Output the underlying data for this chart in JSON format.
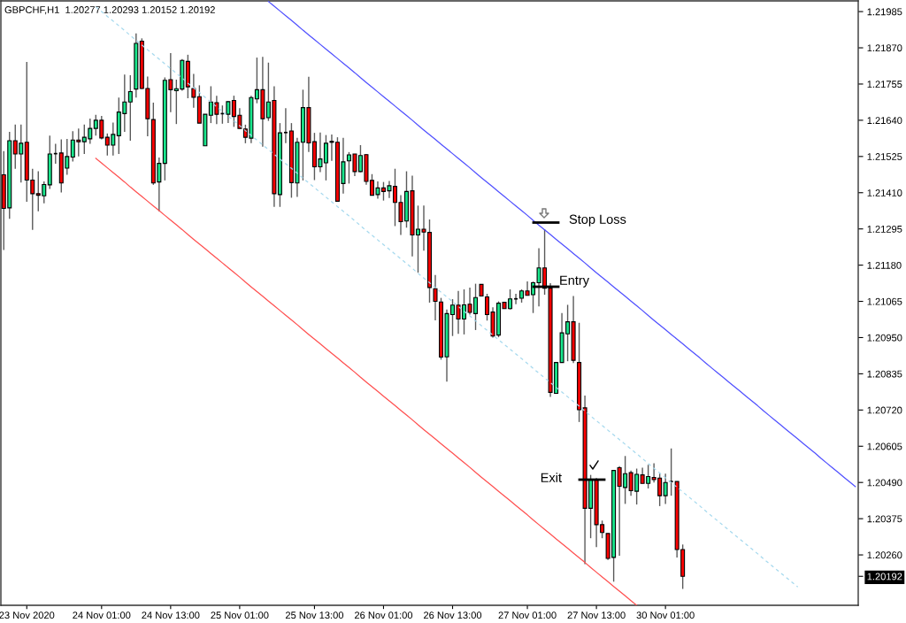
{
  "chart_data": {
    "type": "candlestick",
    "title": "GBPCHF,H1  1.20277 1.20293 1.20152 1.20192",
    "categories": [
      null,
      null,
      null,
      null,
      "23 Nov 2020",
      null,
      null,
      null,
      null,
      null,
      null,
      null,
      null,
      null,
      null,
      null,
      null,
      "24 Nov 01:00",
      null,
      null,
      null,
      null,
      null,
      null,
      null,
      null,
      null,
      null,
      null,
      "24 Nov 13:00",
      null,
      null,
      null,
      null,
      null,
      null,
      null,
      null,
      null,
      null,
      null,
      "25 Nov 01:00",
      null,
      null,
      null,
      null,
      null,
      null,
      null,
      null,
      null,
      null,
      null,
      null,
      "25 Nov 13:00",
      null,
      null,
      null,
      null,
      null,
      null,
      null,
      null,
      null,
      null,
      null,
      "26 Nov 01:00",
      null,
      null,
      null,
      null,
      null,
      null,
      null,
      null,
      null,
      null,
      null,
      "26 Nov 13:00",
      null,
      null,
      null,
      null,
      null,
      null,
      null,
      null,
      null,
      null,
      null,
      null,
      "27 Nov 01:00",
      null,
      null,
      null,
      null,
      null,
      null,
      null,
      null,
      null,
      null,
      null,
      "27 Nov 13:00",
      null,
      null,
      null,
      null,
      null,
      null,
      null,
      null,
      null,
      null,
      null,
      "30 Nov 01:00",
      null,
      null,
      null,
      null,
      null,
      null,
      null,
      null,
      null,
      null,
      null,
      null,
      null,
      null,
      null,
      null,
      null,
      null,
      null,
      null,
      null,
      null,
      null,
      null,
      null,
      null,
      null,
      null,
      null,
      null,
      null,
      null,
      null
    ],
    "ohlc": [
      [
        1.21467,
        1.21542,
        1.21228,
        1.2136
      ],
      [
        1.21362,
        1.21603,
        1.21327,
        1.21575
      ],
      [
        1.21575,
        1.21626,
        1.21486,
        1.21533
      ],
      [
        1.21533,
        1.21626,
        1.21442,
        1.21567
      ],
      [
        1.2157,
        1.21825,
        1.21381,
        1.2145
      ],
      [
        1.2145,
        1.21486,
        1.21292,
        1.21407
      ],
      [
        1.21407,
        1.21478,
        1.21351,
        1.21402
      ],
      [
        1.214,
        1.21446,
        1.21376,
        1.21436
      ],
      [
        1.21435,
        1.21591,
        1.21422,
        1.21533
      ],
      [
        1.21534,
        1.21565,
        1.21502,
        1.21534
      ],
      [
        1.21536,
        1.21579,
        1.21411,
        1.21441
      ],
      [
        1.21488,
        1.21581,
        1.21467,
        1.21525
      ],
      [
        1.21523,
        1.21605,
        1.21509,
        1.21577
      ],
      [
        1.21577,
        1.21614,
        1.21525,
        1.21572
      ],
      [
        1.21572,
        1.21626,
        1.21533,
        1.21586
      ],
      [
        1.21581,
        1.21645,
        1.21565,
        1.21614
      ],
      [
        1.21614,
        1.21657,
        1.21591,
        1.2164
      ],
      [
        1.2164,
        1.21654,
        1.21579,
        1.21584
      ],
      [
        1.21586,
        1.21598,
        1.21528,
        1.21561
      ],
      [
        1.21561,
        1.21633,
        1.21528,
        1.21595
      ],
      [
        1.21591,
        1.21712,
        1.21533,
        1.21666
      ],
      [
        1.21661,
        1.21785,
        1.21603,
        1.21698
      ],
      [
        1.21698,
        1.21783,
        1.21575,
        1.21731
      ],
      [
        1.21739,
        1.21916,
        1.21712,
        1.21884
      ],
      [
        1.21891,
        1.219,
        1.21739,
        1.21741
      ],
      [
        1.21741,
        1.21779,
        1.21589,
        1.21645
      ],
      [
        1.21642,
        1.21696,
        1.21435,
        1.21441
      ],
      [
        1.21444,
        1.21522,
        1.21351,
        1.21503
      ],
      [
        1.21503,
        1.21776,
        1.21449,
        1.21767
      ],
      [
        1.21769,
        1.21853,
        1.21666,
        1.21737
      ],
      [
        1.21734,
        1.21769,
        1.21628,
        1.2174
      ],
      [
        1.21739,
        1.21834,
        1.21734,
        1.2183
      ],
      [
        1.21827,
        1.21848,
        1.2171,
        1.21746
      ],
      [
        1.21741,
        1.21787,
        1.2168,
        1.21713
      ],
      [
        1.21715,
        1.21751,
        1.21631,
        1.21631
      ],
      [
        1.21559,
        1.21659,
        1.21559,
        1.21659
      ],
      [
        1.21656,
        1.21748,
        1.21631,
        1.21698
      ],
      [
        1.21696,
        1.21718,
        1.21628,
        1.21659
      ],
      [
        1.21661,
        1.21687,
        1.21629,
        1.21661
      ],
      [
        1.21659,
        1.21701,
        1.21631,
        1.21699
      ],
      [
        1.21703,
        1.21718,
        1.21619,
        1.21652
      ],
      [
        1.21656,
        1.21678,
        1.21614,
        1.21614
      ],
      [
        1.21612,
        1.21626,
        1.21567,
        1.21586
      ],
      [
        1.21583,
        1.21718,
        1.21567,
        1.21712
      ],
      [
        1.21708,
        1.21839,
        1.21694,
        1.21737
      ],
      [
        1.21737,
        1.21841,
        1.21556,
        1.21645
      ],
      [
        1.21648,
        1.21823,
        1.21638,
        1.21698
      ],
      [
        1.21703,
        1.21748,
        1.21365,
        1.21407
      ],
      [
        1.21404,
        1.21631,
        1.21365,
        1.216
      ],
      [
        1.21601,
        1.21678,
        1.21567,
        1.21601
      ],
      [
        1.21606,
        1.21631,
        1.21394,
        1.21442
      ],
      [
        1.21441,
        1.21584,
        1.21397,
        1.2157
      ],
      [
        1.2157,
        1.21737,
        1.21449,
        1.2168
      ],
      [
        1.2168,
        1.21778,
        1.21539,
        1.21568
      ],
      [
        1.21572,
        1.216,
        1.2145,
        1.21492
      ],
      [
        1.21492,
        1.21601,
        1.21475,
        1.21517
      ],
      [
        1.21505,
        1.21593,
        1.21449,
        1.21567
      ],
      [
        1.2157,
        1.21595,
        1.21511,
        1.21573
      ],
      [
        1.2157,
        1.21586,
        1.21383,
        1.21383
      ],
      [
        1.21439,
        1.21584,
        1.21407,
        1.21508
      ],
      [
        1.21511,
        1.21539,
        1.21439,
        1.2153
      ],
      [
        1.21533,
        1.21533,
        1.21463,
        1.21477
      ],
      [
        1.21477,
        1.21561,
        1.21475,
        1.21528
      ],
      [
        1.21531,
        1.21533,
        1.21435,
        1.21446
      ],
      [
        1.21449,
        1.21469,
        1.21402,
        1.21402
      ],
      [
        1.21404,
        1.21446,
        1.21391,
        1.21425
      ],
      [
        1.21425,
        1.21444,
        1.21385,
        1.21414
      ],
      [
        1.21416,
        1.21447,
        1.21393,
        1.21432
      ],
      [
        1.2143,
        1.21486,
        1.21304,
        1.21379
      ],
      [
        1.21379,
        1.21402,
        1.21276,
        1.21318
      ],
      [
        1.2132,
        1.21478,
        1.21299,
        1.21414
      ],
      [
        1.21416,
        1.21464,
        1.21208,
        1.21276
      ],
      [
        1.21276,
        1.21369,
        1.21156,
        1.21294
      ],
      [
        1.21294,
        1.21369,
        1.21226,
        1.21285
      ],
      [
        1.21284,
        1.21325,
        1.21061,
        1.21109
      ],
      [
        1.21105,
        1.21149,
        1.21005,
        1.21065
      ],
      [
        1.21063,
        1.21076,
        1.2088,
        1.20888
      ],
      [
        1.20889,
        1.21039,
        1.2081,
        1.21026
      ],
      [
        1.21023,
        1.21072,
        1.20955,
        1.21053
      ],
      [
        1.21053,
        1.21098,
        1.20962,
        1.21009
      ],
      [
        1.21009,
        1.21103,
        1.2096,
        1.21054
      ],
      [
        1.21056,
        1.21109,
        1.21023,
        1.2103
      ],
      [
        1.21026,
        1.21121,
        1.20974,
        1.21077
      ],
      [
        1.21119,
        1.21119,
        1.21082,
        1.21082
      ],
      [
        1.21079,
        1.21089,
        1.21004,
        1.21023
      ],
      [
        1.21031,
        1.21046,
        1.2095,
        1.20955
      ],
      [
        1.20958,
        1.21065,
        1.20951,
        1.21059
      ],
      [
        1.21062,
        1.21062,
        1.21042,
        1.21042
      ],
      [
        1.21042,
        1.21103,
        1.21039,
        1.21073
      ],
      [
        1.21073,
        1.21089,
        1.21056,
        1.21073
      ],
      [
        1.21075,
        1.21103,
        1.21061,
        1.21098
      ],
      [
        1.21098,
        1.21128,
        1.21084,
        1.21084
      ],
      [
        1.21086,
        1.21128,
        1.21028,
        1.21124
      ],
      [
        1.21124,
        1.21234,
        1.21049,
        1.21171
      ],
      [
        1.21171,
        1.21294,
        1.21086,
        1.21107
      ],
      [
        1.21107,
        1.21123,
        1.20762,
        1.20776
      ],
      [
        1.20773,
        1.20871,
        1.20773,
        1.20871
      ],
      [
        1.20871,
        1.21028,
        1.20871,
        1.20965
      ],
      [
        1.20962,
        1.21054,
        1.20875,
        1.21
      ],
      [
        1.21,
        1.21082,
        1.20869,
        1.20878
      ],
      [
        1.20871,
        1.20997,
        1.20682,
        1.20721
      ],
      [
        1.20727,
        1.20766,
        1.20231,
        1.20408
      ],
      [
        1.20408,
        1.20514,
        1.20313,
        1.20499
      ],
      [
        1.20499,
        1.20504,
        1.20285,
        1.20356
      ],
      [
        1.20356,
        1.20369,
        1.20313,
        1.20331
      ],
      [
        1.20328,
        1.20328,
        1.20244,
        1.20249
      ],
      [
        1.20252,
        1.20528,
        1.20175,
        1.20528
      ],
      [
        1.20537,
        1.20542,
        1.20257,
        1.20478
      ],
      [
        1.20474,
        1.20574,
        1.20422,
        1.20518
      ],
      [
        1.20521,
        1.20528,
        1.20448,
        1.20464
      ],
      [
        1.20462,
        1.20534,
        1.2042,
        1.20516
      ],
      [
        1.20514,
        1.20537,
        1.20487,
        1.20487
      ],
      [
        1.20487,
        1.20546,
        1.20471,
        1.20509
      ],
      [
        1.20506,
        1.20551,
        1.2049,
        1.20499
      ],
      [
        1.20504,
        1.20518,
        1.20415,
        1.20448
      ],
      [
        1.20448,
        1.20518,
        1.20422,
        1.2049
      ],
      [
        1.20493,
        1.20598,
        1.20448,
        1.20493
      ],
      [
        1.20493,
        1.20493,
        1.20252,
        1.20277
      ],
      [
        1.20277,
        1.20293,
        1.20152,
        1.20192
      ],
      null,
      null,
      null,
      null,
      null,
      null,
      null,
      null,
      null,
      null,
      null,
      null,
      null,
      null,
      null,
      null,
      null,
      null,
      null,
      null,
      null,
      null,
      null,
      null,
      null,
      null,
      null,
      null,
      null,
      null
    ],
    "colors": [
      "#ff0000",
      "#19e68c",
      "#ff0000",
      "#19e68c",
      "#ff0000",
      "#ff0000",
      "#ff0000",
      "#19e68c",
      "#19e68c",
      "#000000",
      "#ff0000",
      "#19e68c",
      "#19e68c",
      "#ff0000",
      "#19e68c",
      "#19e68c",
      "#19e68c",
      "#ff0000",
      "#ff0000",
      "#19e68c",
      "#19e68c",
      "#19e68c",
      "#19e68c",
      "#19e68c",
      "#ff0000",
      "#ff0000",
      "#ff0000",
      "#19e68c",
      "#19e68c",
      "#ff0000",
      "#19e68c",
      "#19e68c",
      "#ff0000",
      "#ff0000",
      "#ff0000",
      "#19e68c",
      "#19e68c",
      "#ff0000",
      "#000000",
      "#19e68c",
      "#ff0000",
      "#ff0000",
      "#ff0000",
      "#19e68c",
      "#19e68c",
      "#ff0000",
      "#19e68c",
      "#ff0000",
      "#19e68c",
      "#000000",
      "#ff0000",
      "#19e68c",
      "#19e68c",
      "#ff0000",
      "#ff0000",
      "#19e68c",
      "#19e68c",
      "#19e68c",
      "#ff0000",
      "#19e68c",
      "#19e68c",
      "#ff0000",
      "#19e68c",
      "#ff0000",
      "#ff0000",
      "#19e68c",
      "#ff0000",
      "#19e68c",
      "#ff0000",
      "#ff0000",
      "#19e68c",
      "#ff0000",
      "#19e68c",
      "#ff0000",
      "#ff0000",
      "#ff0000",
      "#ff0000",
      "#19e68c",
      "#19e68c",
      "#ff0000",
      "#19e68c",
      "#ff0000",
      "#19e68c",
      "#ff0000",
      "#ff0000",
      "#ff0000",
      "#19e68c",
      "#ff0000",
      "#19e68c",
      "#000000",
      "#19e68c",
      "#ff0000",
      "#19e68c",
      "#19e68c",
      "#ff0000",
      "#ff0000",
      "#19e68c",
      "#19e68c",
      "#19e68c",
      "#ff0000",
      "#ff0000",
      "#ff0000",
      "#19e68c",
      "#ff0000",
      "#ff0000",
      "#ff0000",
      "#19e68c",
      "#ff0000",
      "#19e68c",
      "#ff0000",
      "#19e68c",
      "#ff0000",
      "#19e68c",
      "#ff0000",
      "#ff0000",
      "#19e68c",
      "#000000",
      "#ff0000",
      "#ff0000",
      null,
      null,
      null,
      null,
      null,
      null,
      null,
      null,
      null,
      null,
      null,
      null,
      null,
      null,
      null,
      null,
      null,
      null,
      null,
      null,
      null,
      null,
      null,
      null,
      null,
      null,
      null,
      null,
      null,
      null
    ],
    "series": [
      {
        "type": "line",
        "color": "#5050ff",
        "values": [
          null,
          null,
          null,
          null,
          null,
          null,
          null,
          null,
          null,
          null,
          null,
          null,
          null,
          null,
          null,
          null,
          null,
          null,
          null,
          null,
          null,
          null,
          null,
          null,
          null,
          null,
          null,
          null,
          null,
          null,
          null,
          null,
          null,
          null,
          null,
          null,
          null,
          null,
          null,
          null,
          null,
          null,
          null,
          null,
          null,
          null,
          1.22017,
          1.22002,
          1.21987,
          1.21972,
          1.21957,
          1.21942,
          1.21926,
          1.21911,
          1.21896,
          1.21881,
          1.21866,
          1.21851,
          1.21836,
          1.21821,
          1.21806,
          1.21791,
          1.21775,
          1.2176,
          1.21745,
          1.2173,
          1.21715,
          1.217,
          1.21685,
          1.2167,
          1.21655,
          1.2164,
          1.21624,
          1.21609,
          1.21594,
          1.21579,
          1.21564,
          1.21549,
          1.21534,
          1.21519,
          1.21504,
          1.21489,
          1.21473,
          1.21458,
          1.21443,
          1.21428,
          1.21413,
          1.21398,
          1.21383,
          1.21368,
          1.21353,
          1.21338,
          1.21322,
          1.21307,
          1.21292,
          1.21277,
          1.21262,
          1.21247,
          1.21232,
          1.21217,
          1.21202,
          1.21187,
          1.21171,
          1.21156,
          1.21141,
          1.21126,
          1.21111,
          1.21096,
          1.21081,
          1.21066,
          1.21051,
          1.21036,
          1.2102,
          1.21005,
          1.2099,
          1.20975,
          1.2096,
          1.20945,
          1.2093,
          1.20915,
          1.209,
          1.20885,
          1.20869,
          1.20854,
          1.20839,
          1.20824,
          1.20809,
          1.20794,
          1.20779,
          1.20764,
          1.20749,
          1.20734,
          1.20718,
          1.20703,
          1.20688,
          1.20673,
          1.20658,
          1.20643,
          1.20628,
          1.20613,
          1.20598,
          1.20583,
          1.20567,
          1.20552,
          1.20537,
          1.20522,
          1.20507,
          1.20492,
          1.20477
        ]
      },
      {
        "type": "line",
        "color": "#ff5050",
        "values": [
          null,
          null,
          null,
          null,
          null,
          null,
          null,
          null,
          null,
          null,
          null,
          null,
          null,
          null,
          null,
          null,
          1.21519,
          1.21504,
          1.21489,
          1.21474,
          1.21459,
          1.21444,
          1.21428,
          1.21413,
          1.21398,
          1.21383,
          1.21368,
          1.21353,
          1.21338,
          1.21323,
          1.21308,
          1.21293,
          1.21277,
          1.21262,
          1.21247,
          1.21232,
          1.21217,
          1.21202,
          1.21187,
          1.21172,
          1.21157,
          1.21142,
          1.21126,
          1.21111,
          1.21096,
          1.21081,
          1.21066,
          1.21051,
          1.21036,
          1.21021,
          1.21006,
          1.20991,
          1.20975,
          1.2096,
          1.20945,
          1.2093,
          1.20915,
          1.209,
          1.20885,
          1.2087,
          1.20855,
          1.2084,
          1.20824,
          1.20809,
          1.20794,
          1.20779,
          1.20764,
          1.20749,
          1.20734,
          1.20719,
          1.20704,
          1.20689,
          1.20673,
          1.20658,
          1.20643,
          1.20628,
          1.20613,
          1.20598,
          1.20583,
          1.20568,
          1.20553,
          1.20538,
          1.20522,
          1.20507,
          1.20492,
          1.20477,
          1.20462,
          1.20447,
          1.20432,
          1.20417,
          1.20402,
          1.20387,
          1.20371,
          1.20356,
          1.20341,
          1.20326,
          1.20311,
          1.20296,
          1.20281,
          1.20266,
          1.20251,
          1.20236,
          1.2022,
          1.20205,
          1.2019,
          1.20175,
          1.2016,
          1.20145,
          1.2013,
          1.20115,
          1.201,
          null,
          null,
          null,
          null,
          null,
          null,
          null,
          null,
          null,
          null,
          null,
          null,
          null,
          null,
          null,
          null,
          null,
          null,
          null,
          null,
          null,
          null,
          null,
          null,
          null,
          null,
          null,
          null,
          null,
          null,
          null,
          null,
          null,
          null,
          null,
          null,
          null,
          null
        ]
      },
      {
        "type": "line",
        "color": "#a6d9ee",
        "line_style": "dashed",
        "values": [
          null,
          null,
          null,
          null,
          null,
          null,
          null,
          null,
          null,
          null,
          null,
          null,
          null,
          null,
          null,
          null,
          1.22,
          1.21985,
          1.2197,
          1.21955,
          1.2194,
          1.21925,
          1.21909,
          1.21894,
          1.21879,
          1.21864,
          1.21849,
          1.21834,
          1.21819,
          1.21804,
          1.21789,
          1.21774,
          1.21758,
          1.21743,
          1.21728,
          1.21713,
          1.21698,
          1.21683,
          1.21668,
          1.21653,
          1.21638,
          1.21623,
          1.21607,
          1.21592,
          1.21577,
          1.21562,
          1.21547,
          1.21532,
          1.21517,
          1.21502,
          1.21487,
          1.21472,
          1.21456,
          1.21441,
          1.21426,
          1.21411,
          1.21396,
          1.21381,
          1.21366,
          1.21351,
          1.21336,
          1.21321,
          1.21305,
          1.2129,
          1.21275,
          1.2126,
          1.21245,
          1.2123,
          1.21215,
          1.212,
          1.21185,
          1.2117,
          1.21154,
          1.21139,
          1.21124,
          1.21109,
          1.21094,
          1.21079,
          1.21064,
          1.21049,
          1.21034,
          1.21019,
          1.21003,
          1.20988,
          1.20973,
          1.20958,
          1.20943,
          1.20928,
          1.20913,
          1.20898,
          1.20883,
          1.20868,
          1.20852,
          1.20837,
          1.20822,
          1.20807,
          1.20792,
          1.20777,
          1.20762,
          1.20747,
          1.20732,
          1.20717,
          1.20701,
          1.20686,
          1.20671,
          1.20656,
          1.20641,
          1.20626,
          1.20611,
          1.20596,
          1.20581,
          1.20566,
          1.2055,
          1.20535,
          1.2052,
          1.20505,
          1.2049,
          1.20475,
          1.2046,
          1.20445,
          1.2043,
          1.20415,
          1.20399,
          1.20384,
          1.20369,
          1.20354,
          1.20339,
          1.20324,
          1.20309,
          1.20294,
          1.20279,
          1.20264,
          1.20248,
          1.20233,
          1.20218,
          1.20203,
          1.20188,
          1.20173,
          1.20158,
          null,
          null,
          null,
          null,
          null,
          null,
          null,
          null,
          null,
          null
        ]
      }
    ],
    "ylim": [
      1.201,
      1.22019
    ],
    "yticks": [
      1.21985,
      {
        "value": 1.2187,
        "label": "1.21870"
      },
      1.21755,
      {
        "value": 1.2164,
        "label": "1.21640"
      },
      1.21525,
      {
        "value": 1.2141,
        "label": "1.21410"
      },
      1.21295,
      {
        "value": 1.2118,
        "label": "1.21180"
      },
      1.21065,
      {
        "value": 1.2095,
        "label": "1.20950"
      },
      1.20835,
      {
        "value": 1.2072,
        "label": "1.20720"
      },
      1.20605,
      {
        "value": 1.2049,
        "label": "1.20490"
      },
      1.20375,
      {
        "value": 1.2026,
        "label": "1.20260"
      },
      1.20192
    ],
    "annotations": [
      "Stop Loss",
      "Entry",
      "Exit"
    ]
  }
}
